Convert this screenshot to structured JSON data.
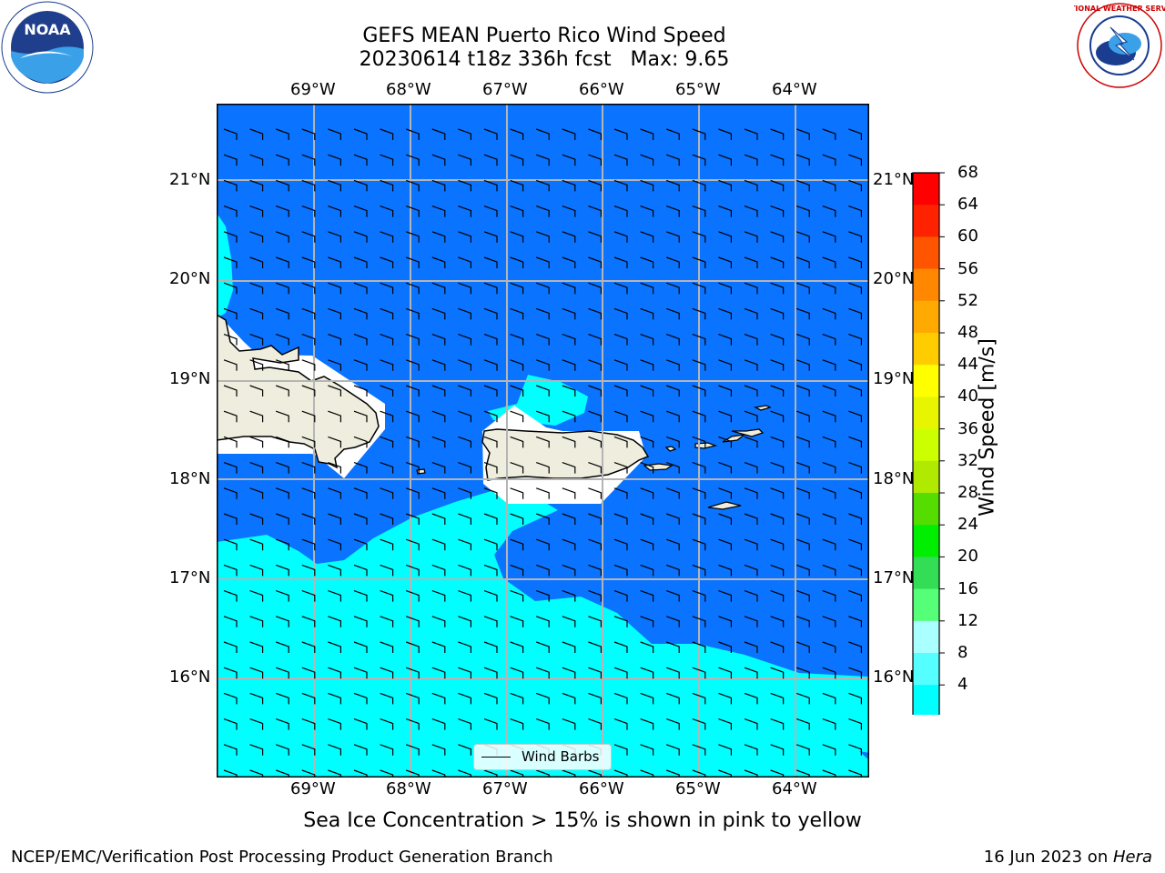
{
  "header": {
    "title_line1": "GEFS MEAN Puerto Rico Wind Speed",
    "title_line2": "20230614 t18z 336h fcst   Max: 9.65"
  },
  "map": {
    "lon_labels": [
      "69°W",
      "68°W",
      "67°W",
      "66°W",
      "65°W",
      "64°W"
    ],
    "lat_labels": [
      "21°N",
      "20°N",
      "19°N",
      "18°N",
      "17°N",
      "16°N"
    ],
    "legend_label": "Wind Barbs",
    "fill_colors": {
      "ocean_4_8": "#0a73ff",
      "ocean_8_12": "#00ffff",
      "land": "#eeedde",
      "masked": "#ffffff"
    }
  },
  "colorbar": {
    "label": "Wind Speed [m/s]",
    "ticks": [
      "68",
      "64",
      "60",
      "56",
      "52",
      "48",
      "44",
      "40",
      "36",
      "32",
      "28",
      "24",
      "20",
      "16",
      "12",
      "8",
      "4"
    ],
    "colors": [
      "#ff0000",
      "#ff2200",
      "#ff5500",
      "#ff8800",
      "#ffaa00",
      "#ffcc00",
      "#ffff00",
      "#e8f500",
      "#ccff00",
      "#b0ea00",
      "#55dd00",
      "#00ee00",
      "#33dd55",
      "#55ff77",
      "#aaffff",
      "#55ffff",
      "#00ffff",
      "#0a73ff"
    ]
  },
  "subtitle": "Sea Ice Concentration > 15% is shown in pink to yellow",
  "footer": {
    "left": "NCEP/EMC/Verification Post Processing Product Generation Branch",
    "right_date": "16 Jun 2023 on ",
    "right_host": "Hera"
  },
  "logos": {
    "left": "NOAA",
    "right": "NATIONAL WEATHER SERVICE"
  }
}
